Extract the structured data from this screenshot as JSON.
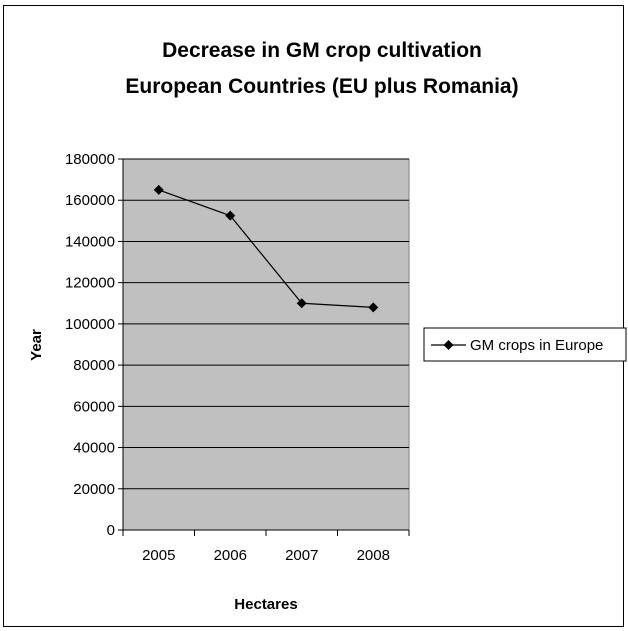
{
  "chart_data": {
    "type": "line",
    "title": [
      "Decrease in GM crop cultivation",
      "European Countries (EU plus Romania)"
    ],
    "xlabel": "Hectares",
    "ylabel": "Year",
    "categories": [
      "2005",
      "2006",
      "2007",
      "2008"
    ],
    "series": [
      {
        "name": "GM crops in Europe",
        "values": [
          165000,
          152500,
          110000,
          108000
        ],
        "color": "#000000",
        "marker": "diamond"
      }
    ],
    "ylim": [
      0,
      180000
    ],
    "yticks": [
      "0",
      "20000",
      "40000",
      "60000",
      "80000",
      "100000",
      "120000",
      "140000",
      "160000",
      "180000"
    ],
    "grid": true,
    "plot_background": "#c0c0c0",
    "legend_position": "right"
  }
}
